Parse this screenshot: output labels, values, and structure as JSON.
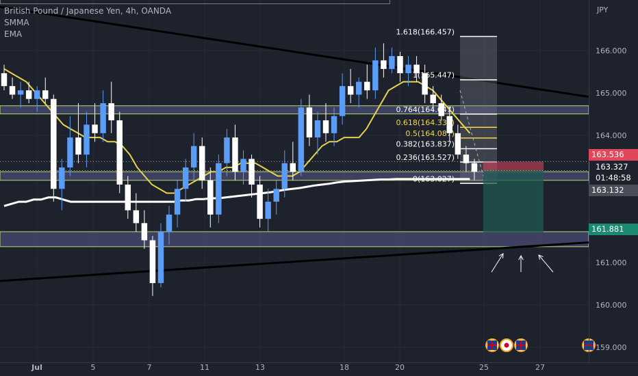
{
  "legend": {
    "symbol_line": "British Pound / Japanese Yen, 4h, OANDA",
    "indicator_1": "SMMA",
    "indicator_2": "EMA"
  },
  "price_axis": {
    "currency": "JPY",
    "ticks": [
      "166.000",
      "165.000",
      "164.000",
      "161.000",
      "160.000",
      "159.000"
    ]
  },
  "time_axis": {
    "ticks": [
      "Jul",
      "5",
      "7",
      "11",
      "13",
      "18",
      "20",
      "25",
      "27"
    ]
  },
  "price_tags": {
    "stop": "163.536",
    "last": "163.327",
    "countdown": "01:48:58",
    "ema": "163.132",
    "target": "161.881"
  },
  "fib_levels": [
    {
      "label": "1.618(166.457)",
      "price": 166.457,
      "color": "#ffffff"
    },
    {
      "label": "1(165.447)",
      "price": 165.447,
      "color": "#ffffff"
    },
    {
      "label": "0.764(164.647)",
      "price": 164.647,
      "color": "#ffffff"
    },
    {
      "label": "0.618(164.337)",
      "price": 164.337,
      "color": "#f5d94a"
    },
    {
      "label": "0.5(164.087)",
      "price": 164.087,
      "color": "#f5d94a"
    },
    {
      "label": "0.382(163.837)",
      "price": 163.837,
      "color": "#ffffff"
    },
    {
      "label": "0.236(163.527)",
      "price": 163.527,
      "color": "#ffffff"
    },
    {
      "label": "0(163.027)",
      "price": 163.027,
      "color": "#ffffff"
    }
  ],
  "colors": {
    "background": "#1e222d",
    "bull": "#5b9cf6",
    "bear": "#ffffff",
    "smma": "#e8d44a",
    "ema": "#ffffff",
    "trendline": "#000000",
    "zone_fill": "#5a5a8c",
    "zone_border": "#b6dc6f",
    "stop_zone": "#e0475b",
    "target_zone": "#1f5a52",
    "tag_stop": "#e0475b",
    "tag_target": "#1b8a70"
  },
  "chart_data": {
    "type": "candlestick",
    "title": "British Pound / Japanese Yen, 4h, OANDA",
    "y_axis_unit": "JPY",
    "ylim": [
      158.85,
      167.15
    ],
    "x_ticks": [
      "Jul",
      "5",
      "7",
      "11",
      "13",
      "18",
      "20",
      "25",
      "27"
    ],
    "series": [
      {
        "name": "SMMA",
        "values": [
          165.7,
          165.6,
          165.5,
          165.4,
          165.2,
          165.0,
          164.8,
          164.6,
          164.4,
          164.3,
          164.2,
          164.1,
          164.1,
          164.1,
          164.0,
          164.0,
          163.9,
          163.7,
          163.4,
          163.2,
          163.0,
          162.9,
          162.8,
          162.8,
          162.9,
          163.0,
          163.1,
          163.2,
          163.3,
          163.3,
          163.4,
          163.4,
          163.5,
          163.5,
          163.5,
          163.4,
          163.3,
          163.2,
          163.2,
          163.2,
          163.3,
          163.5,
          163.7,
          163.9,
          164.0,
          164.0,
          164.1,
          164.1,
          164.1,
          164.3,
          164.6,
          164.9,
          165.2,
          165.3,
          165.4,
          165.4,
          165.4,
          165.3,
          165.2,
          165.0,
          164.8,
          164.6,
          164.4,
          164.2
        ]
      },
      {
        "name": "EMA",
        "values": [
          162.5,
          162.55,
          162.6,
          162.6,
          162.65,
          162.65,
          162.7,
          162.7,
          162.65,
          162.6,
          162.6,
          162.6,
          162.6,
          162.6,
          162.6,
          162.6,
          162.6,
          162.6,
          162.6,
          162.6,
          162.6,
          162.6,
          162.6,
          162.6,
          162.63,
          162.63,
          162.66,
          162.66,
          162.68,
          162.68,
          162.7,
          162.72,
          162.74,
          162.76,
          162.78,
          162.8,
          162.82,
          162.85,
          162.88,
          162.9,
          162.92,
          162.95,
          162.98,
          163.0,
          163.02,
          163.05,
          163.07,
          163.08,
          163.09,
          163.1,
          163.11,
          163.12,
          163.12,
          163.13,
          163.13,
          163.13,
          163.13,
          163.13,
          163.13,
          163.13,
          163.13,
          163.13,
          163.13,
          163.13
        ]
      }
    ],
    "candles": {
      "x_start": 6,
      "x_step": 7.0,
      "ohlc": [
        [
          165.6,
          165.8,
          165.2,
          165.3
        ],
        [
          165.3,
          165.5,
          165.0,
          165.1
        ],
        [
          165.1,
          165.4,
          164.8,
          165.2
        ],
        [
          165.2,
          165.4,
          164.9,
          165.0
        ],
        [
          165.0,
          165.3,
          164.7,
          165.2
        ],
        [
          165.2,
          165.5,
          164.9,
          165.0
        ],
        [
          165.0,
          165.1,
          162.6,
          162.9
        ],
        [
          162.9,
          163.6,
          162.4,
          163.4
        ],
        [
          163.4,
          164.6,
          163.2,
          164.1
        ],
        [
          164.1,
          164.9,
          163.5,
          163.7
        ],
        [
          163.7,
          164.7,
          163.4,
          164.4
        ],
        [
          164.4,
          164.9,
          164.0,
          164.2
        ],
        [
          164.2,
          165.2,
          164.0,
          164.9
        ],
        [
          164.9,
          165.4,
          164.2,
          164.5
        ],
        [
          164.5,
          164.7,
          162.8,
          163.0
        ],
        [
          163.0,
          163.2,
          162.2,
          162.4
        ],
        [
          162.4,
          162.8,
          161.9,
          162.1
        ],
        [
          162.1,
          162.4,
          161.5,
          161.7
        ],
        [
          161.7,
          161.8,
          160.4,
          160.7
        ],
        [
          160.7,
          162.1,
          160.6,
          161.9
        ],
        [
          161.9,
          162.5,
          161.6,
          162.3
        ],
        [
          162.3,
          163.1,
          162.0,
          162.9
        ],
        [
          162.9,
          163.6,
          162.6,
          163.4
        ],
        [
          163.4,
          164.2,
          163.1,
          163.9
        ],
        [
          163.9,
          164.1,
          162.9,
          163.1
        ],
        [
          163.1,
          163.4,
          162.0,
          162.3
        ],
        [
          162.3,
          163.7,
          162.1,
          163.5
        ],
        [
          163.5,
          164.3,
          163.2,
          164.1
        ],
        [
          164.1,
          164.4,
          163.1,
          163.3
        ],
        [
          163.3,
          163.8,
          163.0,
          163.6
        ],
        [
          163.6,
          163.7,
          162.7,
          163.0
        ],
        [
          163.0,
          163.2,
          162.0,
          162.2
        ],
        [
          162.2,
          162.9,
          161.9,
          162.6
        ],
        [
          162.6,
          163.1,
          162.3,
          162.9
        ],
        [
          162.9,
          163.8,
          162.7,
          163.5
        ],
        [
          163.5,
          164.0,
          163.1,
          163.3
        ],
        [
          163.3,
          165.0,
          163.2,
          164.8
        ],
        [
          164.8,
          165.1,
          163.9,
          164.1
        ],
        [
          164.1,
          164.7,
          163.7,
          164.5
        ],
        [
          164.5,
          164.9,
          164.0,
          164.2
        ],
        [
          164.2,
          164.8,
          163.9,
          164.6
        ],
        [
          164.6,
          165.6,
          164.4,
          165.3
        ],
        [
          165.3,
          165.7,
          164.9,
          165.1
        ],
        [
          165.1,
          165.5,
          164.8,
          165.4
        ],
        [
          165.4,
          165.8,
          165.0,
          165.2
        ],
        [
          165.2,
          166.2,
          165.0,
          165.9
        ],
        [
          165.9,
          166.3,
          165.5,
          165.7
        ],
        [
          165.7,
          166.2,
          165.6,
          166.0
        ],
        [
          166.0,
          166.1,
          165.4,
          165.6
        ],
        [
          165.6,
          166.0,
          165.3,
          165.8
        ],
        [
          165.8,
          166.0,
          165.4,
          165.6
        ],
        [
          165.6,
          165.8,
          164.9,
          165.1
        ],
        [
          165.1,
          165.3,
          164.7,
          164.9
        ],
        [
          164.9,
          165.1,
          164.5,
          164.6
        ],
        [
          164.6,
          164.8,
          164.0,
          164.2
        ],
        [
          164.2,
          164.4,
          163.6,
          163.7
        ],
        [
          163.7,
          163.9,
          163.3,
          163.5
        ],
        [
          163.5,
          163.6,
          163.1,
          163.3
        ]
      ]
    },
    "trendlines": [
      {
        "from": [
          0,
          167.15
        ],
        "to": [
          860,
          165.05
        ]
      },
      {
        "from": [
          0,
          160.75
        ],
        "to": [
          860,
          161.65
        ]
      }
    ],
    "zones": [
      {
        "price_top": 164.84,
        "price_bottom": 164.65
      },
      {
        "price_top": 163.3,
        "price_bottom": 163.1
      },
      {
        "price_top": 161.9,
        "price_bottom": 161.55
      }
    ],
    "position": {
      "entry": 163.327,
      "stop": 163.536,
      "target": 161.881
    }
  },
  "overlays": {
    "arrows": [
      "up-right",
      "up",
      "up-left"
    ],
    "event_flags": [
      "GB",
      "JP",
      "GB",
      "GB"
    ]
  }
}
